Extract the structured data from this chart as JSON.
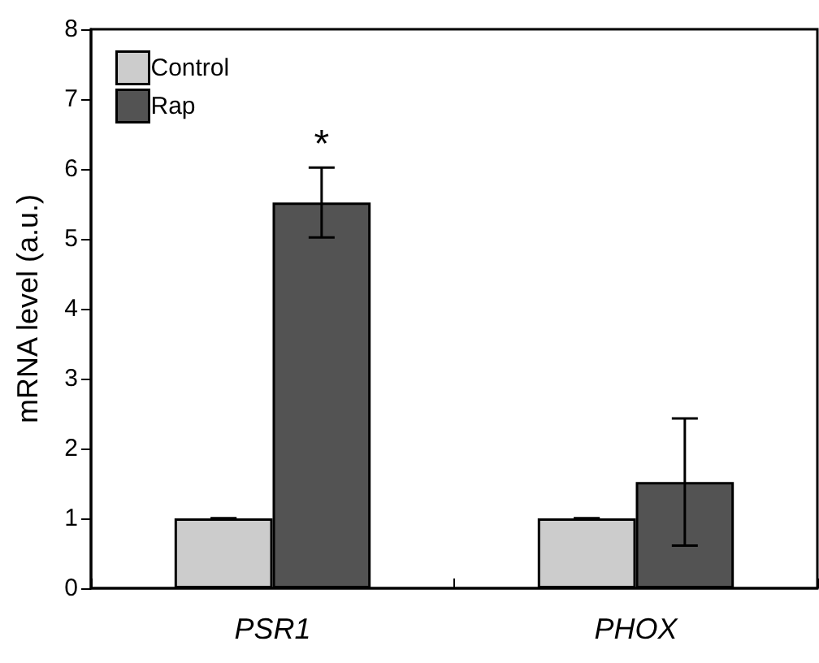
{
  "chart_data": {
    "type": "bar",
    "ylabel": "mRNA level (a.u.)",
    "categories": [
      "PSR1",
      "PHOX"
    ],
    "series": [
      {
        "name": "Control",
        "color": "#cccccc",
        "values": [
          1,
          1
        ],
        "errors": [
          0,
          0
        ]
      },
      {
        "name": "Rap",
        "color": "#535353",
        "values": [
          5.52,
          1.52
        ],
        "errors": [
          0.5,
          0.91
        ]
      }
    ],
    "ylim": [
      0,
      8
    ],
    "yticks": [
      0,
      1,
      2,
      3,
      4,
      5,
      6,
      7,
      8
    ],
    "grid": false,
    "legend": "top left",
    "annotations": [
      "*"
    ]
  }
}
